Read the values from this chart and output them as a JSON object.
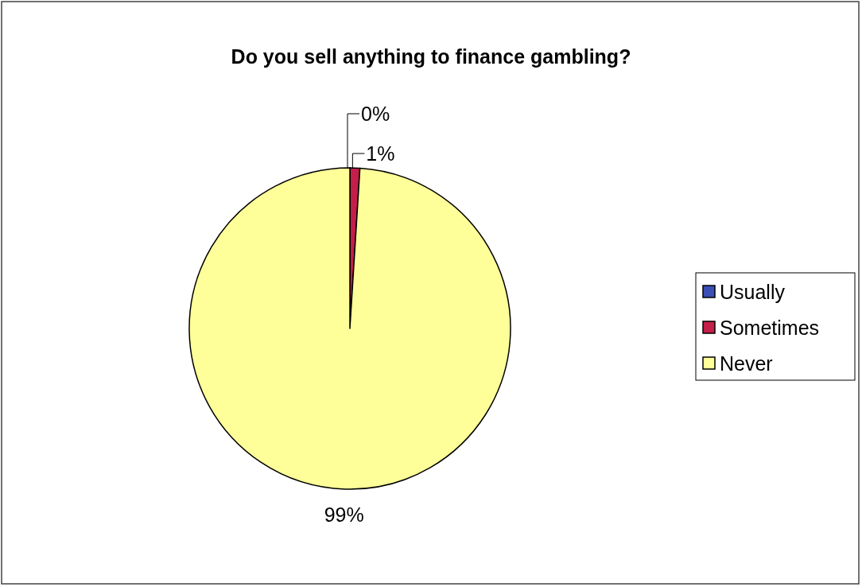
{
  "chart_data": {
    "type": "pie",
    "title": "Do you sell anything to finance gambling?",
    "categories": [
      "Usually",
      "Sometimes",
      "Never"
    ],
    "values": [
      0,
      1,
      99
    ],
    "colors": [
      "#3b4fb5",
      "#c41e4a",
      "#ffff99"
    ],
    "value_labels": [
      "0%",
      "1%",
      "99%"
    ],
    "legend": "right"
  }
}
